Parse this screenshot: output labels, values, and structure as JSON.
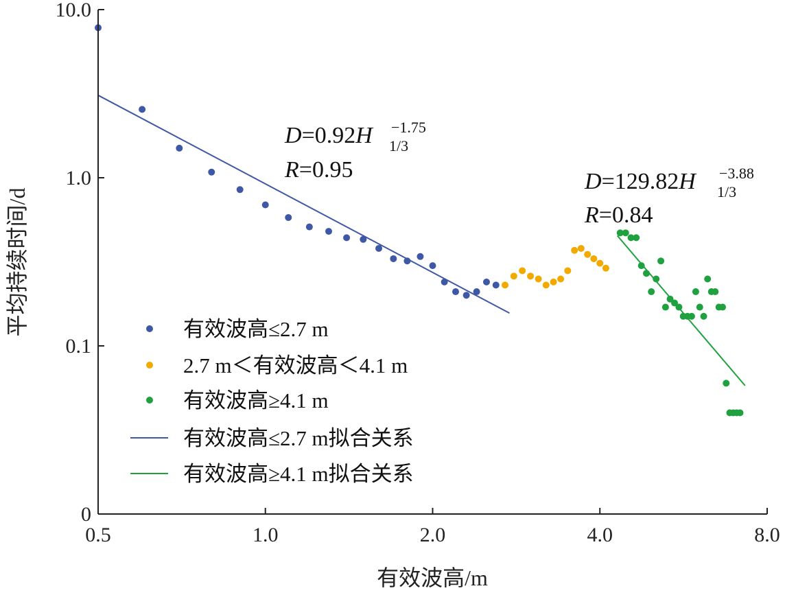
{
  "chart_data": {
    "type": "scatter",
    "x_scale": "log",
    "y_scale": "log",
    "xlabel": "有效波高/m",
    "ylabel": "平均持续时间/d",
    "xlim": [
      0.5,
      8.0
    ],
    "ylim": [
      0.01,
      10.0
    ],
    "x_ticks": [
      {
        "value": 0.5,
        "label": "0.5"
      },
      {
        "value": 1.0,
        "label": "1.0"
      },
      {
        "value": 2.0,
        "label": "2.0"
      },
      {
        "value": 4.0,
        "label": "4.0"
      },
      {
        "value": 8.0,
        "label": "8.0"
      }
    ],
    "y_ticks": [
      {
        "value": 10.0,
        "label": "10.0"
      },
      {
        "value": 1.0,
        "label": "1.0"
      },
      {
        "value": 0.1,
        "label": "0.1"
      },
      {
        "value": 0.01,
        "label": "0"
      }
    ],
    "grid": false,
    "legend_position": "bottom-left",
    "series": [
      {
        "name": "有效波高≤2.7 m",
        "kind": "scatter",
        "color": "#3f58a6",
        "points": [
          [
            0.5,
            7.8
          ],
          [
            0.6,
            2.55
          ],
          [
            0.7,
            1.5
          ],
          [
            0.8,
            1.08
          ],
          [
            0.9,
            0.85
          ],
          [
            1.0,
            0.69
          ],
          [
            1.1,
            0.58
          ],
          [
            1.2,
            0.51
          ],
          [
            1.3,
            0.48
          ],
          [
            1.4,
            0.44
          ],
          [
            1.5,
            0.43
          ],
          [
            1.6,
            0.38
          ],
          [
            1.7,
            0.33
          ],
          [
            1.8,
            0.32
          ],
          [
            1.9,
            0.34
          ],
          [
            2.0,
            0.3
          ],
          [
            2.1,
            0.24
          ],
          [
            2.2,
            0.21
          ],
          [
            2.3,
            0.2
          ],
          [
            2.4,
            0.21
          ],
          [
            2.5,
            0.24
          ],
          [
            2.6,
            0.23
          ]
        ]
      },
      {
        "name": "2.7 m＜有效波高＜4.1 m",
        "kind": "scatter",
        "color": "#f2a900",
        "points": [
          [
            2.7,
            0.23
          ],
          [
            2.8,
            0.26
          ],
          [
            2.9,
            0.28
          ],
          [
            3.0,
            0.26
          ],
          [
            3.1,
            0.25
          ],
          [
            3.2,
            0.23
          ],
          [
            3.3,
            0.24
          ],
          [
            3.4,
            0.25
          ],
          [
            3.5,
            0.28
          ],
          [
            3.6,
            0.37
          ],
          [
            3.7,
            0.38
          ],
          [
            3.8,
            0.35
          ],
          [
            3.9,
            0.33
          ],
          [
            4.0,
            0.31
          ],
          [
            4.1,
            0.29
          ]
        ]
      },
      {
        "name": "有效波高≥4.1 m",
        "kind": "scatter",
        "color": "#1ea13e",
        "points": [
          [
            4.35,
            0.47
          ],
          [
            4.45,
            0.47
          ],
          [
            4.55,
            0.44
          ],
          [
            4.65,
            0.44
          ],
          [
            4.75,
            0.3
          ],
          [
            4.85,
            0.27
          ],
          [
            4.95,
            0.21
          ],
          [
            5.05,
            0.25
          ],
          [
            5.15,
            0.32
          ],
          [
            5.25,
            0.17
          ],
          [
            5.35,
            0.19
          ],
          [
            5.45,
            0.18
          ],
          [
            5.55,
            0.17
          ],
          [
            5.65,
            0.15
          ],
          [
            5.75,
            0.15
          ],
          [
            5.85,
            0.15
          ],
          [
            5.95,
            0.21
          ],
          [
            6.05,
            0.17
          ],
          [
            6.15,
            0.15
          ],
          [
            6.25,
            0.25
          ],
          [
            6.35,
            0.21
          ],
          [
            6.45,
            0.21
          ],
          [
            6.55,
            0.17
          ],
          [
            6.65,
            0.17
          ],
          [
            6.75,
            0.06
          ],
          [
            6.85,
            0.04
          ],
          [
            6.95,
            0.04
          ],
          [
            7.05,
            0.04
          ],
          [
            7.15,
            0.04
          ]
        ]
      },
      {
        "name": "有效波高≤2.7 m拟合关系",
        "kind": "fit_line",
        "color": "#3f58a6",
        "equation": {
          "coef": 0.92,
          "exp": -1.75
        },
        "x_range": [
          0.5,
          2.75
        ]
      },
      {
        "name": "有效波高≥4.1 m拟合关系",
        "kind": "fit_line",
        "color": "#1ea13e",
        "equation": {
          "coef": 129.82,
          "exp": -3.88
        },
        "x_range": [
          4.3,
          7.3
        ]
      }
    ],
    "annotations": [
      {
        "id": "fit_low",
        "lhs": "D",
        "eq": "=0.92",
        "var": "H",
        "sub": "1/3",
        "sup": "−1.75",
        "r_var": "R",
        "r_val": "=0.95"
      },
      {
        "id": "fit_high",
        "lhs": "D",
        "eq": "=129.82",
        "var": "H",
        "sub": "1/3",
        "sup": "−3.88",
        "r_var": "R",
        "r_val": "=0.84"
      }
    ]
  }
}
